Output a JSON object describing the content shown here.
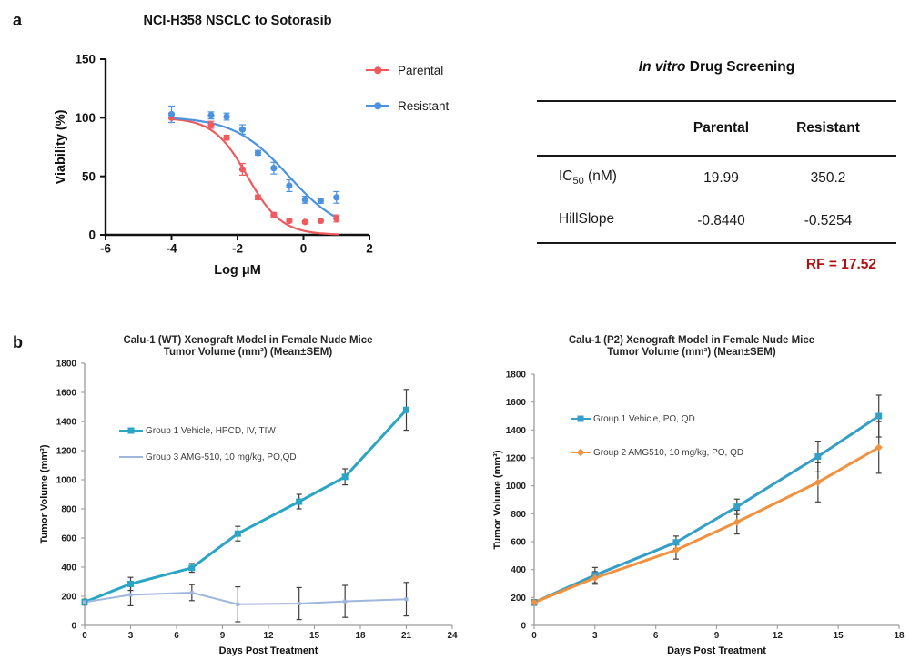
{
  "panels": {
    "a_label": "a",
    "b_label": "b"
  },
  "screening_table": {
    "title_italic": "In vitro",
    "title_rest": " Drug Screening",
    "col_parental": "Parental",
    "col_resistant": "Resistant",
    "rows": [
      {
        "label_pre": "IC",
        "label_sub": "50",
        "label_post": " (nM)",
        "parental": "19.99",
        "resistant": "350.2"
      },
      {
        "label_pre": "HillSlope",
        "label_sub": "",
        "label_post": "",
        "parental": "-0.8440",
        "resistant": "-0.5254"
      }
    ],
    "footnote": "RF = 17.52",
    "footnote_color": "#b01212"
  },
  "chart_data": [
    {
      "id": "dose-response",
      "type": "scatter",
      "title": "NCI-H358 NSCLC to Sotorasib",
      "xlabel": "Log μM",
      "ylabel": "Viability (%)",
      "xlim": [
        -6,
        2
      ],
      "ylim": [
        0,
        150
      ],
      "xticks": [
        -6,
        -4,
        -2,
        0,
        2
      ],
      "yticks": [
        0,
        50,
        100,
        150
      ],
      "legend_position": "right-top",
      "series": [
        {
          "name": "Parental",
          "color": "#ef5a5e",
          "marker": "circle",
          "x": [
            -4,
            -2.8,
            -2.33,
            -1.85,
            -1.38,
            -0.9,
            -0.43,
            0.05,
            0.52,
            1
          ],
          "y": [
            100,
            94,
            83,
            56,
            32,
            17,
            12,
            11,
            12,
            14
          ],
          "err": [
            4,
            3,
            2,
            5,
            2,
            2,
            1,
            1,
            1,
            3
          ],
          "ic50_nM": 19.99,
          "hillslope": -0.844,
          "fit": {
            "top": 100,
            "bottom": 0,
            "log_ic50": -1.699,
            "hillslope": -0.844,
            "x_from": -4,
            "x_to": 1.1
          }
        },
        {
          "name": "Resistant",
          "color": "#4b92e0",
          "marker": "circle",
          "x": [
            -4,
            -2.8,
            -2.33,
            -1.85,
            -1.38,
            -0.9,
            -0.43,
            0.05,
            0.52,
            1
          ],
          "y": [
            103,
            102,
            101,
            90,
            70,
            57,
            42,
            30,
            29,
            32
          ],
          "err": [
            7,
            3,
            3,
            4,
            2,
            5,
            5,
            3,
            2,
            5
          ],
          "ic50_nM": 350.2,
          "hillslope": -0.5254,
          "fit": {
            "top": 101,
            "bottom": 0,
            "log_ic50": -0.456,
            "hillslope": -0.5254,
            "x_from": -4,
            "x_to": 1.05
          }
        }
      ]
    },
    {
      "id": "xenograft-wt",
      "type": "line",
      "title": [
        "Calu-1 (WT) Xenograft Model in Female Nude Mice",
        "Tumor Volume (mm³) (Mean±SEM)"
      ],
      "xlabel": "Days Post Treatment",
      "ylabel": "Tumor Volume (mm³)",
      "xlim": [
        0,
        24
      ],
      "ylim": [
        0,
        1800
      ],
      "xticks": [
        0,
        3,
        6,
        9,
        12,
        15,
        18,
        21,
        24
      ],
      "yticks": [
        0,
        200,
        400,
        600,
        800,
        1000,
        1200,
        1400,
        1600,
        1800
      ],
      "err_color": "#3f3f3f",
      "legend_position": "inside-left",
      "series": [
        {
          "name": "Group 1 Vehicle, HPCD, IV, TIW",
          "color": "#2aa5c5",
          "marker": "square",
          "line_width": 3,
          "x": [
            0,
            3,
            7,
            10,
            14,
            17,
            21
          ],
          "y": [
            160,
            285,
            395,
            630,
            850,
            1020,
            1480
          ],
          "err": [
            20,
            45,
            30,
            50,
            50,
            55,
            140
          ]
        },
        {
          "name": "Group 3 AMG-510, 10 mg/kg, PO,QD",
          "color": "#9fb6dd",
          "marker": "smallsquare",
          "line_width": 2,
          "x": [
            0,
            3,
            7,
            10,
            14,
            17,
            21
          ],
          "y": [
            160,
            210,
            225,
            145,
            150,
            165,
            180
          ],
          "err": [
            15,
            75,
            55,
            120,
            110,
            110,
            115
          ]
        }
      ]
    },
    {
      "id": "xenograft-p2",
      "type": "line",
      "title": [
        "Calu-1 (P2) Xenograft Model in Female Nude Mice",
        "Tumor Volume (mm³) (Mean±SEM)"
      ],
      "xlabel": "Days Post Treatment",
      "ylabel": "Tumor Volume (mm³)",
      "xlim": [
        0,
        18
      ],
      "ylim": [
        0,
        1800
      ],
      "xticks": [
        0,
        3,
        6,
        9,
        12,
        15,
        18
      ],
      "yticks": [
        0,
        200,
        400,
        600,
        800,
        1000,
        1200,
        1400,
        1600,
        1800
      ],
      "err_color": "#3f3f3f",
      "legend_position": "inside-left",
      "series": [
        {
          "name": "Group 1 Vehicle, PO, QD",
          "color": "#359fc8",
          "marker": "square",
          "line_width": 3,
          "x": [
            0,
            3,
            7,
            10,
            14,
            17
          ],
          "y": [
            165,
            360,
            595,
            850,
            1210,
            1500
          ],
          "err": [
            20,
            55,
            45,
            55,
            110,
            150
          ]
        },
        {
          "name": "Group 2 AMG510, 10 mg/kg, PO, QD",
          "color": "#f0923f",
          "marker": "diamond",
          "line_width": 3,
          "x": [
            0,
            3,
            7,
            10,
            14,
            17
          ],
          "y": [
            165,
            340,
            540,
            740,
            1025,
            1275
          ],
          "err": [
            20,
            45,
            65,
            85,
            140,
            185
          ]
        }
      ]
    }
  ]
}
